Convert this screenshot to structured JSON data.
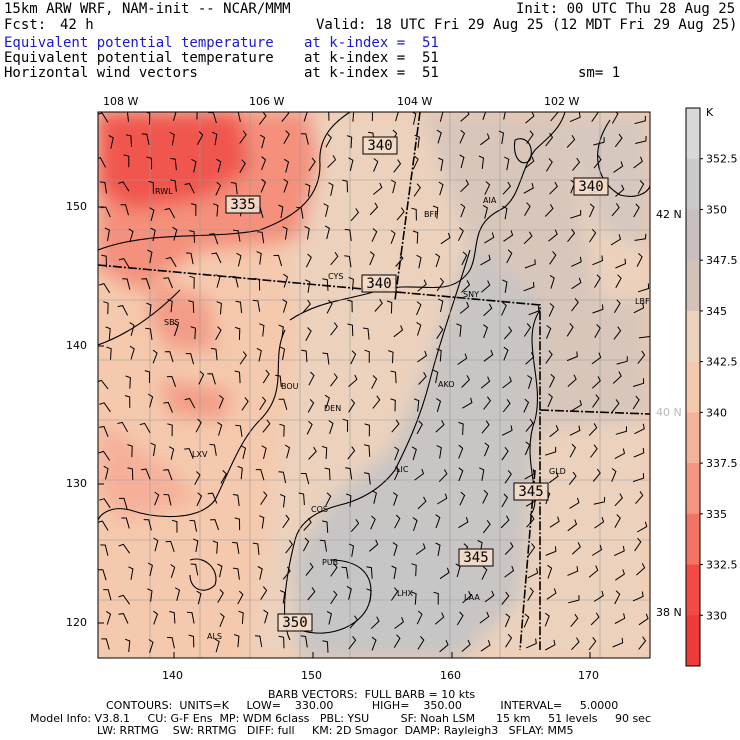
{
  "header": {
    "title": "15km ARW WRF, NAM-init -- NCAR/MMM",
    "init": "Init: 00 UTC Thu 28 Aug 25",
    "fcst_label": "Fcst:",
    "fcst_value": "42 h",
    "valid": "Valid: 18 UTC Fri 29 Aug 25 (12 MDT Fri 29 Aug 25)",
    "fields": [
      {
        "name": "Equivalent potential temperature",
        "level": "at k-index =  51",
        "color": "#1a1acc"
      },
      {
        "name": "Equivalent potential temperature",
        "level": "at k-index =  51",
        "color": "#000000"
      },
      {
        "name": "Horizontal wind vectors",
        "level": "at k-index =  51",
        "color": "#000000"
      }
    ],
    "smoothing": "sm= 1"
  },
  "axes": {
    "top_lon_labels": [
      "108 W",
      "106 W",
      "104 W",
      "102 W"
    ],
    "bottom_x_ticks": [
      "140",
      "150",
      "160",
      "170"
    ],
    "left_y_ticks": [
      "150",
      "140",
      "130",
      "120"
    ],
    "right_lat_labels": [
      "42 N",
      "40 N",
      "38 N"
    ]
  },
  "map": {
    "cities": [
      "RWL",
      "BFF",
      "AIA",
      "CYS",
      "SNY",
      "LBF",
      "SBS",
      "BOU",
      "DEN",
      "AKO",
      "LXV",
      "LIC",
      "GLD",
      "COS",
      "PUB",
      "LHX",
      "LAA",
      "ALS"
    ],
    "contour_labels": [
      "335",
      "340",
      "340",
      "340",
      "345",
      "345",
      "350"
    ]
  },
  "colorbar": {
    "unit": "K",
    "labels": [
      "352.5",
      "350",
      "347.5",
      "345",
      "342.5",
      "340",
      "337.5",
      "335",
      "332.5",
      "330"
    ],
    "colors": [
      "#d8d8d8",
      "#cacaca",
      "#c8c0bf",
      "#d2c2b8",
      "#ecd2bd",
      "#f5c9ad",
      "#f5b29b",
      "#f49582",
      "#f47464",
      "#f24b46",
      "#ef3a3a"
    ]
  },
  "footer": {
    "barb": "BARB VECTORS:  FULL BARB = 10 kts",
    "contours": "CONTOURS:  UNITS=K     LOW=    330.00           HIGH=    350.00           INTERVAL=     5.0000",
    "model_line1": "Model Info: V3.8.1     CU: G-F Ens  MP: WDM 6class   PBL: YSU         SF: Noah LSM      15 km     51 levels     90 sec",
    "model_line2": "LW: RRTMG    SW: RRTMG   DIFF: full     KM: 2D Smagor  DAMP: Rayleigh3   SFLAY: MM5"
  }
}
